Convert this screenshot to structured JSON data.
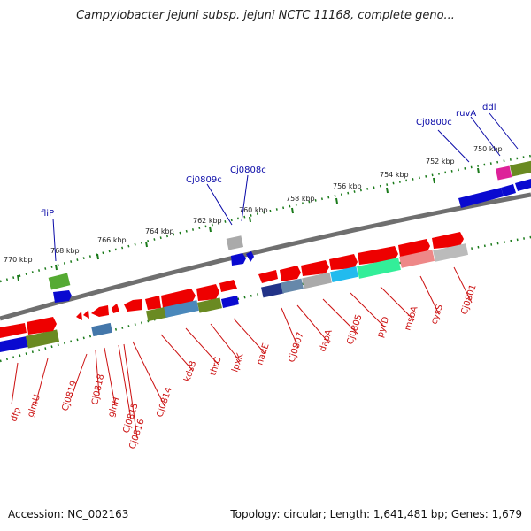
{
  "title": "Campylobacter jejuni subsp. jejuni NCTC 11168, complete geno...",
  "footer": {
    "accession": "Accession: NC_002163",
    "summary": "Topology: circular; Length: 1,641,481 bp; Genes: 1,679"
  },
  "colors": {
    "forward_gene": "#ee0000",
    "reverse_gene": "#0a0ad0",
    "backbone": "#777777",
    "tick_green": "#1a7a1a",
    "label_blue": "#0a0aa8",
    "label_red": "#cc1111"
  },
  "kbp_labels": [
    "770 kbp",
    "768 kbp",
    "766 kbp",
    "764 kbp",
    "762 kbp",
    "760 kbp",
    "758 kbp",
    "756 kbp",
    "754 kbp",
    "752 kbp",
    "750 kbp"
  ],
  "outer_genes": [
    "fliP",
    "Cj0809c",
    "Cj0808c",
    "Cj0800c",
    "ruvA",
    "ddl"
  ],
  "inner_genes": [
    "dfp",
    "glmU",
    "Cj0819",
    "Cj0818",
    "glnH",
    "Cj0815",
    "Cj0816",
    "Cj0814",
    "kdsB",
    "thrC",
    "lpxK",
    "nadE",
    "Cj0807",
    "dapA",
    "Cj0805",
    "pyrD",
    "msbA",
    "cysS",
    "Cj0801"
  ]
}
